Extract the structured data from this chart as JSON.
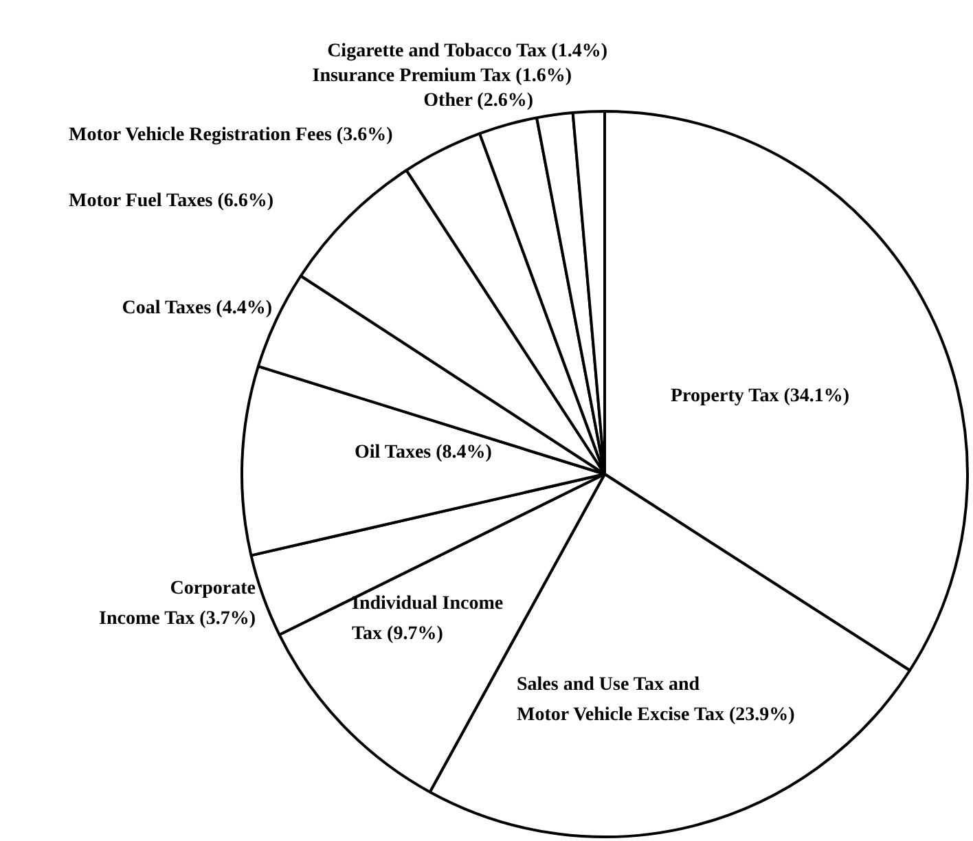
{
  "chart_data": {
    "type": "pie",
    "categories": [
      "Property Tax (34.1%)",
      "Sales and Use Tax and\nMotor Vehicle Excise Tax (23.9%)",
      "Individual Income\nTax (9.7%)",
      "Corporate\nIncome Tax (3.7%)",
      "Oil Taxes (8.4%)",
      "Coal Taxes (4.4%)",
      "Motor Fuel Taxes (6.6%)",
      "Motor Vehicle Registration Fees (3.6%)",
      "Other (2.6%)",
      "Insurance Premium Tax (1.6%)",
      "Cigarette and Tobacco Tax (1.4%)"
    ],
    "values": [
      34.1,
      23.9,
      9.7,
      3.7,
      8.4,
      4.4,
      6.6,
      3.6,
      2.6,
      1.6,
      1.4
    ],
    "colors": [
      "#ffffff",
      "#ffffff",
      "#ffffff",
      "#ffffff",
      "#ffffff",
      "#ffffff",
      "#ffffff",
      "#ffffff",
      "#ffffff",
      "#ffffff",
      "#ffffff"
    ],
    "legend": false
  }
}
